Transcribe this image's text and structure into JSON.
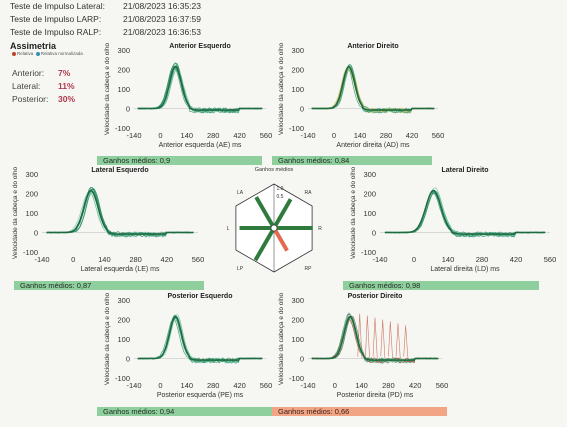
{
  "header": {
    "rows": [
      {
        "label": "Teste de Impulso Lateral:",
        "value": "21/08/2023 16:35:23"
      },
      {
        "label": "Teste de Impulso LARP:",
        "value": "21/08/2023 16:37:59"
      },
      {
        "label": "Teste de Impulso RALP:",
        "value": "21/08/2023 16:36:53"
      }
    ]
  },
  "asymmetry": {
    "title": "Assimetria",
    "legend": {
      "relative": "Relativa",
      "relative_normalized": "Relativa normalizada"
    },
    "items": [
      {
        "label": "Anterior:",
        "value": "7%"
      },
      {
        "label": "Lateral:",
        "value": "11%"
      },
      {
        "label": "Posterior:",
        "value": "30%"
      }
    ]
  },
  "colors": {
    "trace": "#2e8f6a",
    "trace_light": "#72c2a8",
    "trace_yellow": "#d4b83a",
    "trace_red": "#c0432c",
    "bar_green": "#8fcf9d",
    "bar_orange": "#f2a584",
    "hex_green": "#2f7a3d",
    "hex_red": "#e36a4e"
  },
  "chart_data": [
    {
      "id": "ae",
      "type": "line",
      "title": "Anterior Esquerdo",
      "xlabel": "Anterior esquerda (AE) ms",
      "ylabel": "Velocidade da cabeça e do olho",
      "xlim": [
        -140,
        560
      ],
      "ylim": [
        -100,
        300
      ],
      "xticks": [
        "-140",
        "0",
        "140",
        "280",
        "420",
        "560"
      ],
      "yticks": [
        "300",
        "200",
        "100",
        "0",
        "-100"
      ],
      "gain_label": "Ganhos médios: 0,9",
      "gain_status": "normal",
      "overlay": "none"
    },
    {
      "id": "ad",
      "type": "line",
      "title": "Anterior Direito",
      "xlabel": "Anterior direita (AD) ms",
      "ylabel": "Velocidade da cabeça e do olho",
      "xlim": [
        -140,
        560
      ],
      "ylim": [
        -100,
        300
      ],
      "xticks": [
        "-140",
        "0",
        "140",
        "280",
        "420",
        "560"
      ],
      "yticks": [
        "300",
        "200",
        "100",
        "0",
        "-100"
      ],
      "gain_label": "Ganhos médios: 0,84",
      "gain_status": "normal",
      "overlay": "yellow"
    },
    {
      "id": "le",
      "type": "line",
      "title": "Lateral Esquerdo",
      "xlabel": "Lateral esquerda (LE) ms",
      "ylabel": "Velocidade da cabeça e do olho",
      "xlim": [
        -140,
        560
      ],
      "ylim": [
        -100,
        300
      ],
      "xticks": [
        "-140",
        "0",
        "140",
        "280",
        "420",
        "560"
      ],
      "yticks": [
        "300",
        "200",
        "100",
        "0",
        "-100"
      ],
      "gain_label": "Ganhos médios: 0,87",
      "gain_status": "normal",
      "overlay": "none"
    },
    {
      "id": "ld",
      "type": "line",
      "title": "Lateral Direito",
      "xlabel": "Lateral direita (LD) ms",
      "ylabel": "Velocidade da cabeça e do olho",
      "xlim": [
        -140,
        560
      ],
      "ylim": [
        -100,
        300
      ],
      "xticks": [
        "-140",
        "0",
        "140",
        "280",
        "420",
        "560"
      ],
      "yticks": [
        "300",
        "200",
        "100",
        "0",
        "-100"
      ],
      "gain_label": "Ganhos médios: 0,98",
      "gain_status": "normal",
      "overlay": "none"
    },
    {
      "id": "pe",
      "type": "line",
      "title": "Posterior Esquerdo",
      "xlabel": "Posterior esquerda (PE) ms",
      "ylabel": "Velocidade da cabeça e do olho",
      "xlim": [
        -140,
        560
      ],
      "ylim": [
        -100,
        300
      ],
      "xticks": [
        "-140",
        "0",
        "140",
        "280",
        "420",
        "560"
      ],
      "yticks": [
        "300",
        "200",
        "100",
        "0",
        "-100"
      ],
      "gain_label": "Ganhos médios: 0,94",
      "gain_status": "normal",
      "overlay": "none"
    },
    {
      "id": "pd",
      "type": "line",
      "title": "Posterior Direito",
      "xlabel": "Posterior direita (PD) ms",
      "ylabel": "Velocidade da cabeça e do olho",
      "xlim": [
        -140,
        560
      ],
      "ylim": [
        -100,
        300
      ],
      "xticks": [
        "-140",
        "0",
        "140",
        "280",
        "420",
        "560"
      ],
      "yticks": [
        "300",
        "200",
        "100",
        "0",
        "-100"
      ],
      "gain_label": "Ganhos médios: 0,66",
      "gain_status": "low",
      "overlay": "red"
    }
  ],
  "gain_hex": {
    "title": "Ganhos médios",
    "labels": [
      {
        "text": "LA",
        "axis": "la"
      },
      {
        "text": "RA",
        "axis": "ra"
      },
      {
        "text": "L",
        "axis": "l"
      },
      {
        "text": "R",
        "axis": "r"
      },
      {
        "text": "LP",
        "axis": "lp"
      },
      {
        "text": "RP",
        "axis": "rp"
      },
      {
        "text": "1.0",
        "axis": "scale"
      },
      {
        "text": "0.5",
        "axis": "scale"
      }
    ],
    "gains": {
      "ra": 0.84,
      "lp": 0.94,
      "l": 0.87,
      "r": 0.98,
      "la": 0.9,
      "rp": 0.66
    }
  }
}
